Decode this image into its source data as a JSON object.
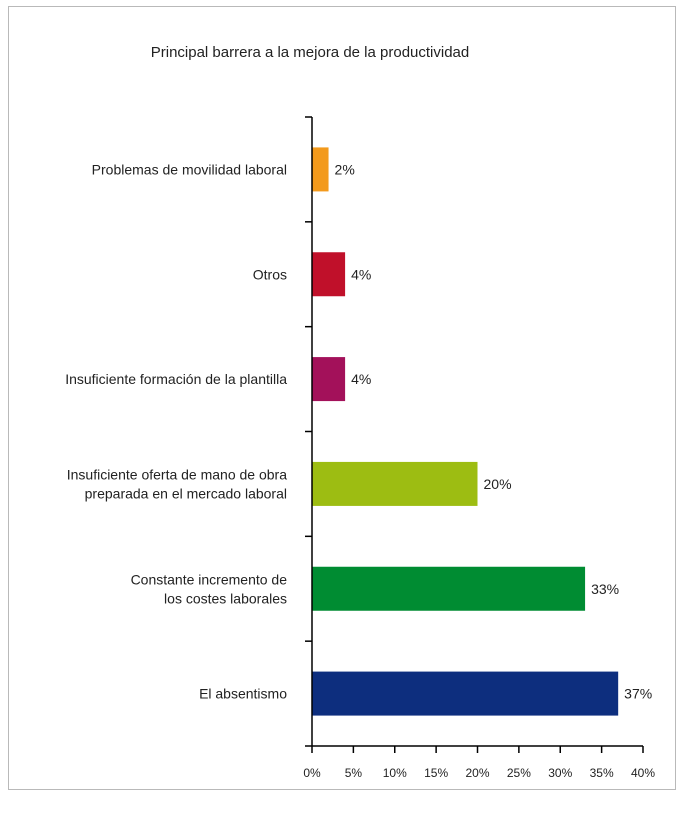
{
  "chart_data": {
    "type": "bar",
    "orientation": "horizontal",
    "title": "Principal barrera a la mejora de la productividad",
    "xlabel": "",
    "ylabel": "",
    "xlim": [
      0,
      40
    ],
    "x_ticks": [
      "0%",
      "5%",
      "10%",
      "15%",
      "20%",
      "25%",
      "30%",
      "35%",
      "40%"
    ],
    "grid": false,
    "categories": [
      [
        "Problemas de movilidad laboral"
      ],
      [
        "Otros"
      ],
      [
        "Insuficiente formación de la plantilla"
      ],
      [
        "Insuficiente oferta de mano de obra",
        "preparada en el mercado laboral"
      ],
      [
        "Constante incremento de",
        "los costes laborales"
      ],
      [
        "El absentismo"
      ]
    ],
    "values": [
      2,
      4,
      4,
      20,
      33,
      37
    ],
    "value_labels": [
      "2%",
      "4%",
      "4%",
      "20%",
      "33%",
      "37%"
    ],
    "colors": [
      "#f39a1c",
      "#c0102a",
      "#a3115a",
      "#9dbd12",
      "#008c32",
      "#0d2e7e"
    ]
  }
}
